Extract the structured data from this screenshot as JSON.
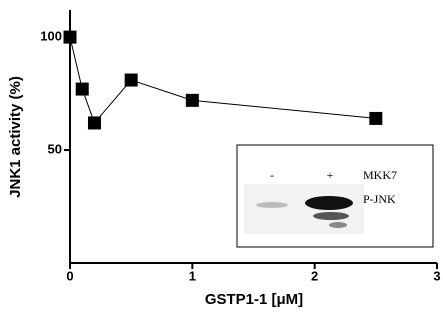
{
  "chart_data": {
    "type": "line",
    "y_label": "JNK1 activity (%)",
    "x_label": "GSTP1-1 [μM]",
    "x": [
      0,
      0.1,
      0.2,
      0.5,
      1,
      2.5
    ],
    "series": [
      {
        "color": "#000000",
        "values": [
          100,
          77,
          62,
          81,
          72,
          64
        ]
      }
    ],
    "xlim": [
      0,
      3
    ],
    "xticks": [
      0,
      1,
      2,
      3
    ],
    "ylim": [
      0,
      112
    ],
    "yticks": [
      50,
      100
    ],
    "inset_labels": [
      "-",
      "+",
      "MKK7",
      "P-JNK"
    ]
  }
}
